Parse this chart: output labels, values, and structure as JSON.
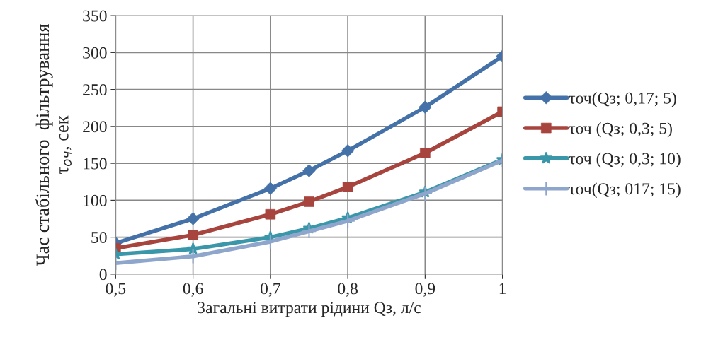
{
  "chart_data": {
    "type": "line",
    "xlabel": "Загальні витрати рідини Qз, л/с",
    "ylabel": "Час стабільного  фільтрування\nτ$_{оч}$, сек",
    "x": [
      0.5,
      0.6,
      0.7,
      0.75,
      0.8,
      0.9,
      1
    ],
    "xlim": [
      0.5,
      1
    ],
    "xticks": [
      {
        "value": 0.5,
        "label": "0,5"
      },
      {
        "value": 0.6,
        "label": "0,6"
      },
      {
        "value": 0.7,
        "label": "0,7"
      },
      {
        "value": 0.8,
        "label": "0,8"
      },
      {
        "value": 0.9,
        "label": "0,9"
      },
      1
    ],
    "ylim": [
      0,
      350
    ],
    "yticks": [
      0,
      50,
      100,
      150,
      200,
      250,
      300,
      350
    ],
    "grid": true,
    "legend": "right",
    "series": [
      {
        "name": "τоч(Qз; 0,17; 5)",
        "color": "#4472a8",
        "marker": "diamond",
        "values": [
          42,
          75,
          116,
          140,
          167,
          226,
          295
        ]
      },
      {
        "name": "τоч (Qз; 0,3; 5)",
        "color": "#a8443e",
        "marker": "square",
        "values": [
          35,
          53,
          81,
          98,
          118,
          164,
          220
        ]
      },
      {
        "name": "τоч (Qз; 0,3; 10)",
        "color": "#3a97aa",
        "marker": "star",
        "values": [
          27,
          34,
          50,
          62,
          76,
          111,
          155
        ]
      },
      {
        "name": "τоч(Qз; 017; 15)",
        "color": "#8fa6cc",
        "marker": "cross",
        "values": [
          15,
          24,
          44,
          58,
          72,
          109,
          154
        ]
      }
    ]
  }
}
